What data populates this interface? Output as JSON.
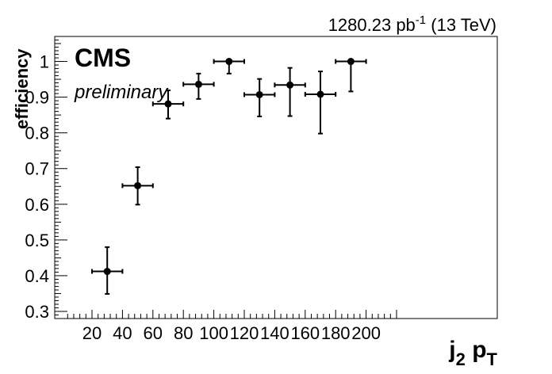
{
  "chart_data": {
    "type": "scatter",
    "title": "",
    "lumi_label": {
      "value": "1280.23 pb",
      "sup": "-1",
      "suffix": " (13 TeV)"
    },
    "experiment_label": "CMS",
    "status_label": "preliminary",
    "xlabel": {
      "main": "j",
      "sub1": "2",
      "mid": " p",
      "sub2": "T"
    },
    "ylabel": "efficiency",
    "xlim": [
      0,
      220
    ],
    "ylim": [
      0.28,
      1.07
    ],
    "xticks": [
      20,
      40,
      60,
      80,
      100,
      120,
      140,
      160,
      180,
      200
    ],
    "xtick_labels": [
      "20",
      "40",
      "60",
      "80",
      "100",
      "120",
      "140",
      "160",
      "180",
      "200"
    ],
    "yticks": [
      0.3,
      0.4,
      0.5,
      0.6,
      0.7,
      0.8,
      0.9,
      1.0
    ],
    "ytick_labels": [
      "0.3",
      "0.4",
      "0.5",
      "0.6",
      "0.7",
      "0.8",
      "0.9",
      "1"
    ],
    "grid": false,
    "marker_color": "#000000",
    "points": [
      {
        "x": 30,
        "xerr": 10,
        "y": 0.412,
        "yerr_low": 0.063,
        "yerr_high": 0.068
      },
      {
        "x": 50,
        "xerr": 10,
        "y": 0.652,
        "yerr_low": 0.053,
        "yerr_high": 0.052
      },
      {
        "x": 70,
        "xerr": 10,
        "y": 0.881,
        "yerr_low": 0.041,
        "yerr_high": 0.038
      },
      {
        "x": 90,
        "xerr": 10,
        "y": 0.936,
        "yerr_low": 0.041,
        "yerr_high": 0.03
      },
      {
        "x": 110,
        "xerr": 10,
        "y": 1.0,
        "yerr_low": 0.034,
        "yerr_high": 0.0
      },
      {
        "x": 130,
        "xerr": 10,
        "y": 0.907,
        "yerr_low": 0.061,
        "yerr_high": 0.044
      },
      {
        "x": 150,
        "xerr": 10,
        "y": 0.934,
        "yerr_low": 0.087,
        "yerr_high": 0.048
      },
      {
        "x": 170,
        "xerr": 10,
        "y": 0.908,
        "yerr_low": 0.11,
        "yerr_high": 0.064
      },
      {
        "x": 190,
        "xerr": 10,
        "y": 1.0,
        "yerr_low": 0.084,
        "yerr_high": 0.0
      }
    ]
  }
}
